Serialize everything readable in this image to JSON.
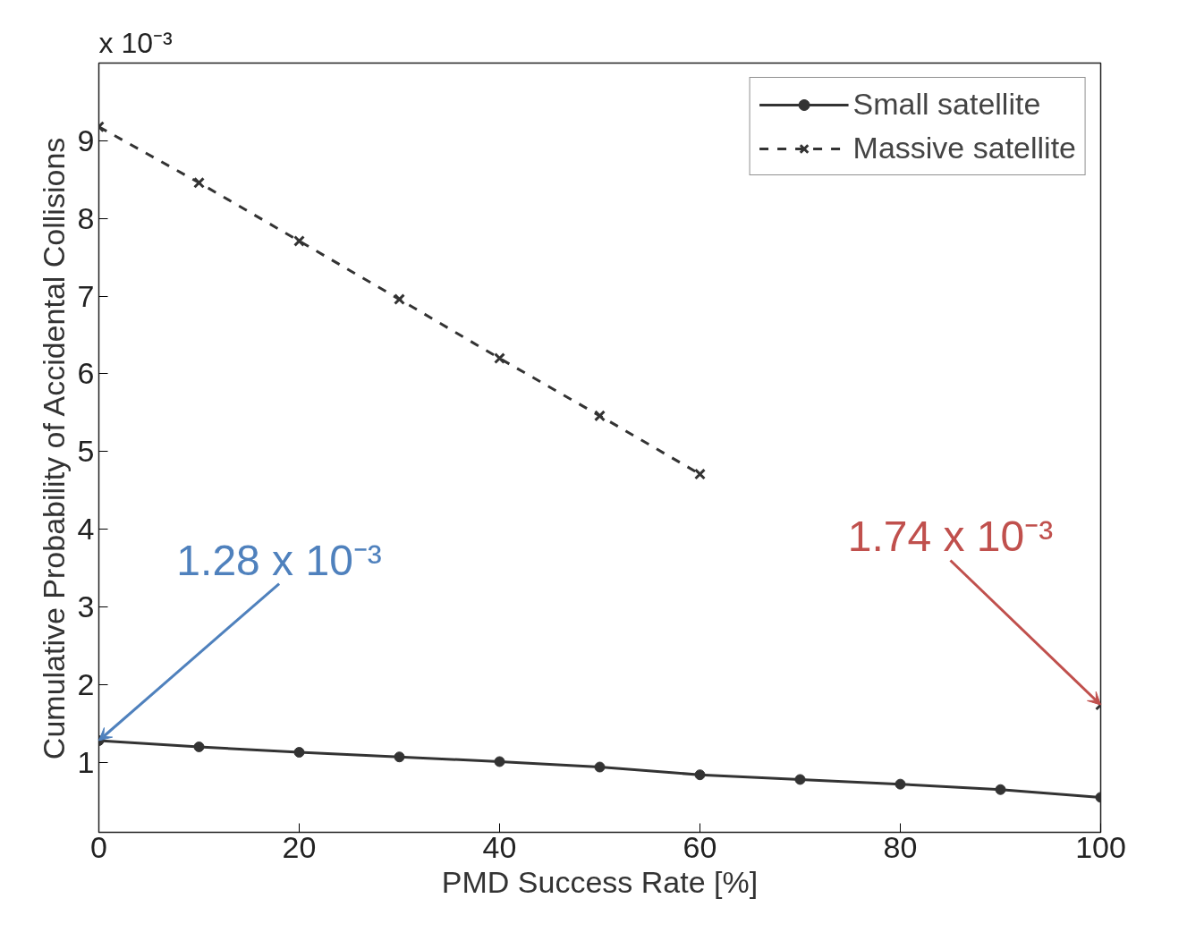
{
  "chart_data": {
    "type": "line",
    "xlabel": "PMD Success Rate [%]",
    "ylabel": "Cumulative Probability of Accidental Collisions",
    "x": [
      0,
      10,
      20,
      30,
      40,
      50,
      60,
      70,
      80,
      90,
      100
    ],
    "series": [
      {
        "name": "Small satellite",
        "color": "#333333",
        "marker": "circle",
        "line_style": "solid",
        "values": [
          1.28,
          1.2,
          1.13,
          1.07,
          1.01,
          0.94,
          0.84,
          0.78,
          0.72,
          0.65,
          0.55
        ]
      },
      {
        "name": "Massive satellite",
        "color": "#333333",
        "marker": "cross",
        "line_style": "dashed",
        "values": [
          9.18,
          8.46,
          7.71,
          6.96,
          6.2,
          5.46,
          4.71,
          null,
          null,
          null,
          1.74
        ]
      }
    ],
    "xlim": [
      0,
      100
    ],
    "ylim": [
      0.1,
      10
    ],
    "xticks": [
      0,
      20,
      40,
      60,
      80,
      100
    ],
    "yticks": [
      1,
      2,
      3,
      4,
      5,
      6,
      7,
      8,
      9
    ],
    "grid": false,
    "legend": "top right",
    "annotations": [
      "x 10⁻³",
      {
        "text": "1.28 x 10⁻³",
        "x": 0,
        "y": 1.28
      },
      {
        "text": "1.74 x 10⁻³",
        "x": 100,
        "y": 1.74
      }
    ]
  }
}
